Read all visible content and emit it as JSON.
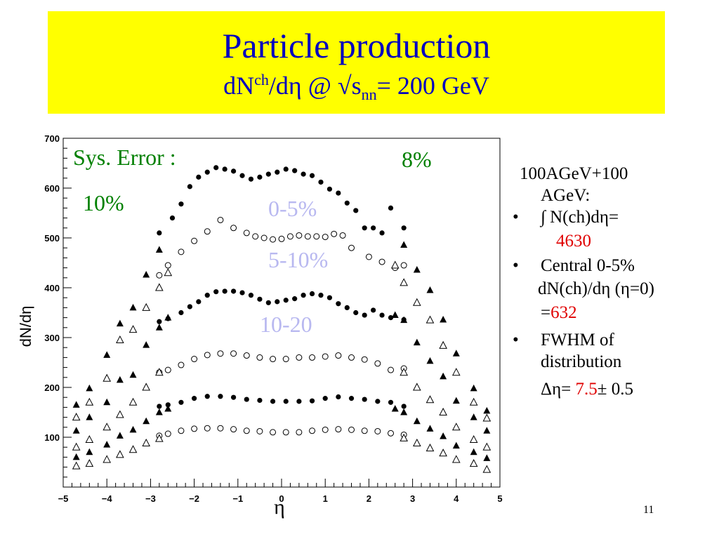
{
  "title": {
    "main": "Particle production",
    "sub_a": "dN",
    "sub_sup": "ch",
    "sub_b": "/dη  @ √s",
    "sub_sub": "nn",
    "sub_c": "= 200 GeV"
  },
  "bullets": {
    "system_line1": "100AGeV+100",
    "system_line2": "AGeV:",
    "b1_symbol": "•",
    "b1_text": "∫ N(ch)dη=",
    "b1_value": "4630",
    "b2_symbol": "•",
    "b2_text": "Central 0-5%",
    "b2_line2": "dN(ch)/dη (η=0)",
    "b2_eq": "=",
    "b2_value": "632",
    "b3_symbol": "•",
    "b3_line1": "FWHM of",
    "b3_line2": "distribution",
    "b3_prefix": "Δη= ",
    "b3_value": "7.5",
    "b3_suffix": "± 0.5"
  },
  "page_number": "11",
  "colors": {
    "title_bg": "#ffff00",
    "title_text": "#0000c0",
    "annotation_green": "#008000",
    "annotation_lavender": "#b8b8f0",
    "highlight_red": "#e00000"
  },
  "chart_data": {
    "type": "scatter",
    "xlabel": "η",
    "ylabel": "dN/dη",
    "xlim": [
      -5,
      5
    ],
    "ylim": [
      0,
      700
    ],
    "x_ticks": [
      -5,
      -4,
      -3,
      -2,
      -1,
      0,
      1,
      2,
      3,
      4,
      5
    ],
    "y_ticks": [
      100,
      200,
      300,
      400,
      500,
      600,
      700
    ],
    "grid": false,
    "annotations": {
      "sys_error": "Sys. Error :",
      "sys_left": "10%",
      "sys_right": "8%",
      "c1": "0-5%",
      "c2": "5-10%",
      "c3": "10-20"
    },
    "series": [
      {
        "marker": "filled-circle",
        "x": [
          -2.8,
          -2.5,
          -2.3,
          -2.1,
          -1.9,
          -1.7,
          -1.5,
          -1.3,
          -1.1,
          -0.9,
          -0.7,
          -0.5,
          -0.3,
          -0.1,
          0.1,
          0.3,
          0.5,
          0.7,
          0.9,
          1.1,
          1.3,
          1.5,
          1.7,
          1.9,
          2.1,
          2.3,
          2.5,
          2.8
        ],
        "y": [
          510,
          540,
          568,
          603,
          622,
          632,
          641,
          638,
          634,
          625,
          618,
          622,
          628,
          632,
          638,
          635,
          628,
          625,
          612,
          598,
          590,
          570,
          555,
          520,
          520,
          510,
          560,
          520
        ]
      },
      {
        "marker": "open-circle",
        "x": [
          -2.8,
          -2.6,
          -2.3,
          -2.0,
          -1.7,
          -1.4,
          -1.1,
          -0.8,
          -0.6,
          -0.4,
          -0.2,
          0.0,
          0.2,
          0.4,
          0.6,
          0.8,
          1.0,
          1.2,
          1.4,
          1.6,
          2.0,
          2.3,
          2.6,
          2.8
        ],
        "y": [
          425,
          445,
          472,
          494,
          513,
          536,
          520,
          510,
          503,
          500,
          497,
          498,
          503,
          505,
          503,
          503,
          502,
          508,
          505,
          480,
          462,
          452,
          440,
          445
        ]
      },
      {
        "marker": "filled-circle",
        "x": [
          -2.8,
          -2.6,
          -2.3,
          -2.1,
          -1.9,
          -1.7,
          -1.5,
          -1.3,
          -1.1,
          -0.9,
          -0.7,
          -0.5,
          -0.3,
          -0.1,
          0.1,
          0.3,
          0.5,
          0.7,
          0.9,
          1.1,
          1.3,
          1.5,
          1.7,
          1.9,
          2.1,
          2.3,
          2.5,
          2.8
        ],
        "y": [
          332,
          338,
          350,
          362,
          372,
          385,
          392,
          393,
          393,
          390,
          385,
          377,
          370,
          372,
          375,
          378,
          385,
          388,
          385,
          380,
          368,
          360,
          350,
          345,
          355,
          345,
          340,
          336
        ]
      },
      {
        "marker": "open-circle",
        "x": [
          -2.8,
          -2.6,
          -2.3,
          -2.0,
          -1.7,
          -1.4,
          -1.1,
          -0.8,
          -0.5,
          -0.2,
          0.1,
          0.4,
          0.7,
          1.0,
          1.3,
          1.6,
          1.9,
          2.2,
          2.5,
          2.8
        ],
        "y": [
          230,
          235,
          245,
          257,
          265,
          268,
          268,
          264,
          260,
          257,
          257,
          260,
          260,
          262,
          264,
          260,
          256,
          248,
          235,
          238
        ]
      },
      {
        "marker": "filled-circle",
        "x": [
          -2.8,
          -2.6,
          -2.3,
          -2.0,
          -1.7,
          -1.4,
          -1.1,
          -0.8,
          -0.5,
          -0.2,
          0.1,
          0.4,
          0.7,
          1.0,
          1.3,
          1.6,
          1.9,
          2.2,
          2.5,
          2.8
        ],
        "y": [
          162,
          165,
          170,
          178,
          182,
          182,
          180,
          176,
          174,
          172,
          172,
          172,
          173,
          178,
          181,
          178,
          176,
          172,
          170,
          162
        ]
      },
      {
        "marker": "open-circle",
        "x": [
          -2.8,
          -2.6,
          -2.3,
          -2.0,
          -1.7,
          -1.4,
          -1.1,
          -0.8,
          -0.5,
          -0.2,
          0.1,
          0.4,
          0.7,
          1.0,
          1.3,
          1.6,
          1.9,
          2.2,
          2.5,
          2.8
        ],
        "y": [
          103,
          107,
          113,
          117,
          118,
          118,
          116,
          113,
          112,
          110,
          110,
          110,
          113,
          115,
          116,
          115,
          113,
          112,
          108,
          105
        ]
      },
      {
        "marker": "filled-triangle",
        "x": [
          -4.7,
          -4.4,
          -4.0,
          -3.7,
          -3.4,
          -3.1,
          -2.8,
          2.8,
          3.1,
          3.4,
          3.7,
          4.0,
          4.4,
          4.7
        ],
        "y": [
          165,
          198,
          265,
          328,
          360,
          426,
          476,
          486,
          436,
          395,
          336,
          268,
          198,
          153
        ]
      },
      {
        "marker": "open-triangle",
        "x": [
          -4.7,
          -4.4,
          -4.0,
          -3.7,
          -3.4,
          -3.1,
          -2.8,
          -2.6,
          2.6,
          2.8,
          3.1,
          3.4,
          3.7,
          4.0,
          4.4,
          4.7
        ],
        "y": [
          140,
          170,
          218,
          295,
          316,
          360,
          400,
          430,
          445,
          410,
          370,
          335,
          284,
          230,
          170,
          138
        ]
      },
      {
        "marker": "filled-triangle",
        "x": [
          -4.7,
          -4.4,
          -4.0,
          -3.7,
          -3.4,
          -3.1,
          -2.8,
          -2.6,
          2.6,
          2.8,
          3.1,
          3.4,
          3.7,
          4.0,
          4.4,
          4.7
        ],
        "y": [
          113,
          140,
          170,
          215,
          225,
          285,
          320,
          340,
          345,
          335,
          290,
          253,
          222,
          173,
          140,
          113
        ]
      },
      {
        "marker": "open-triangle",
        "x": [
          -4.7,
          -4.4,
          -4.0,
          -3.7,
          -3.4,
          -3.1,
          -2.8,
          2.8,
          3.1,
          3.4,
          3.7,
          4.0,
          4.4,
          4.7
        ],
        "y": [
          80,
          95,
          120,
          145,
          170,
          200,
          230,
          230,
          200,
          175,
          150,
          120,
          95,
          80
        ]
      },
      {
        "marker": "filled-triangle",
        "x": [
          -4.7,
          -4.4,
          -4.0,
          -3.7,
          -3.4,
          -3.1,
          -2.8,
          -2.6,
          2.6,
          2.8,
          3.1,
          3.4,
          3.7,
          4.0,
          4.4,
          4.7
        ],
        "y": [
          60,
          70,
          85,
          103,
          115,
          132,
          150,
          157,
          157,
          150,
          132,
          117,
          102,
          83,
          70,
          58
        ]
      },
      {
        "marker": "open-triangle",
        "x": [
          -4.7,
          -4.4,
          -4.0,
          -3.7,
          -3.4,
          -3.1,
          -2.8,
          2.8,
          3.1,
          3.4,
          3.7,
          4.0,
          4.4,
          4.7
        ],
        "y": [
          42,
          47,
          55,
          65,
          75,
          88,
          97,
          98,
          88,
          78,
          68,
          55,
          47,
          35
        ]
      }
    ]
  }
}
